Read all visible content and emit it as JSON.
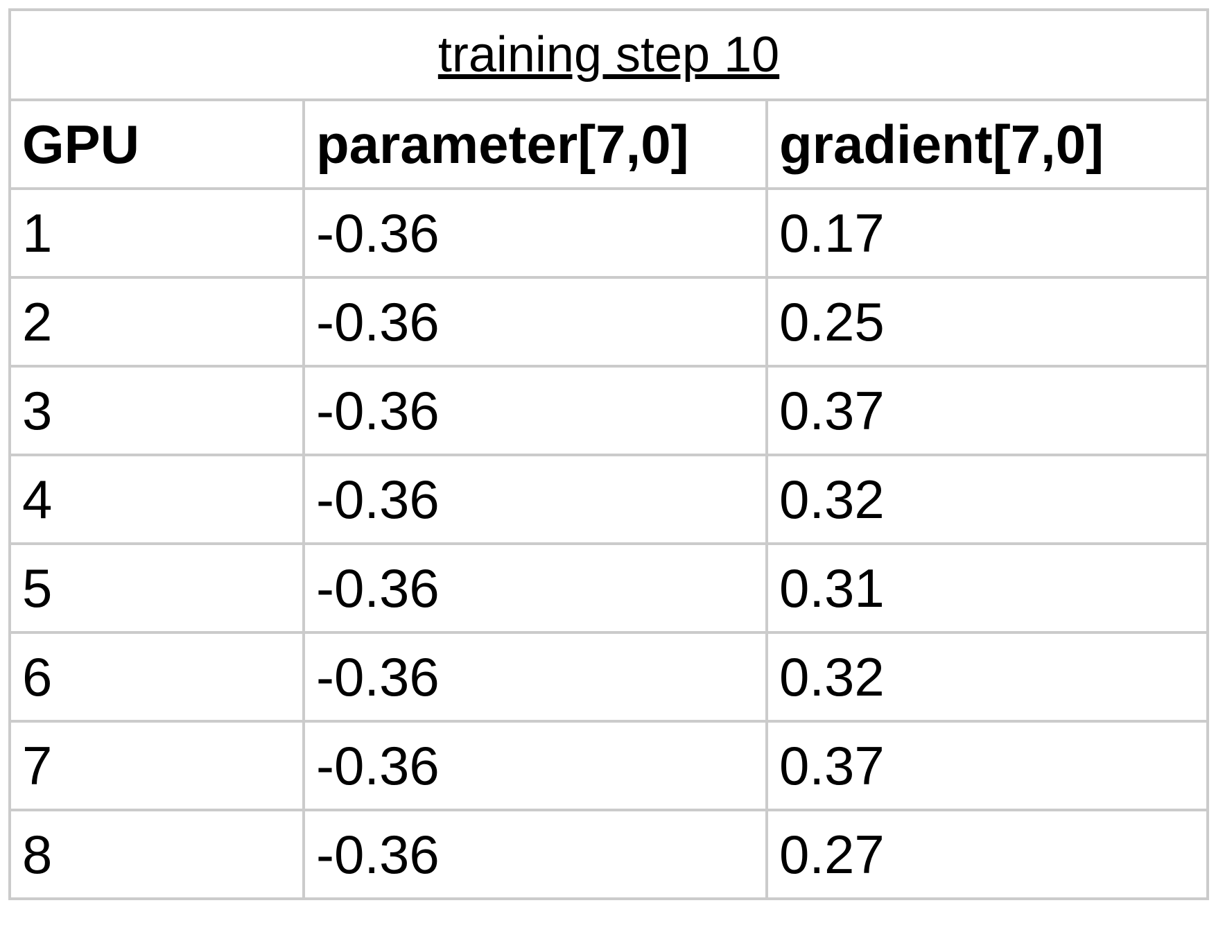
{
  "table": {
    "title": "training step 10",
    "header": [
      "GPU",
      "parameter[7,0]",
      "gradient[7,0]"
    ],
    "rows": [
      [
        1,
        -0.36,
        0.17
      ],
      [
        2,
        -0.36,
        0.25
      ],
      [
        3,
        -0.36,
        0.37
      ],
      [
        4,
        -0.36,
        0.32
      ],
      [
        5,
        -0.36,
        0.31
      ],
      [
        6,
        -0.36,
        0.32
      ],
      [
        7,
        -0.36,
        0.37
      ],
      [
        8,
        -0.36,
        0.27
      ]
    ]
  }
}
